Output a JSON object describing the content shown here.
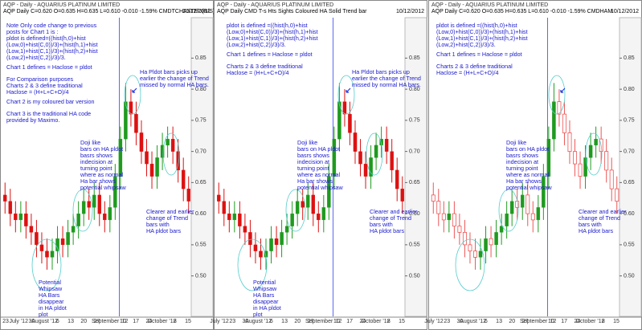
{
  "chart_data": [
    {
      "type": "candlestick",
      "title": "AQP - Daily - AQUARIUS PLATINUM LIMITED",
      "subtitle": "AQP  Daily  C=0.620  O=0.635  H=0.635  L=0.610  -0.010  -1.59%  CMDTCHASTED(B/S)",
      "date": "10/12/2012",
      "up_color": "#1f9a1f",
      "down_color": "#dd1111",
      "down_style": "solid",
      "ylim": [
        0.435,
        0.915
      ],
      "yticks": [
        {
          "value": 0.5,
          "label": "0.50"
        },
        {
          "value": 0.55,
          "label": "0.55"
        },
        {
          "value": 0.6,
          "label": "0.60"
        },
        {
          "value": 0.65,
          "label": "0.65"
        },
        {
          "value": 0.7,
          "label": "0.70"
        },
        {
          "value": 0.75,
          "label": "0.75"
        },
        {
          "value": 0.8,
          "label": "0.80"
        },
        {
          "value": 0.85,
          "label": "0.85"
        }
      ],
      "open": [
        0.63,
        0.62,
        0.6,
        0.59,
        0.6,
        0.58,
        0.57,
        0.55,
        0.54,
        0.53,
        0.54,
        0.56,
        0.55,
        0.57,
        0.58,
        0.6,
        0.62,
        0.61,
        0.63,
        0.6,
        0.59,
        0.61,
        0.66,
        0.72,
        0.78,
        0.76,
        0.73,
        0.7,
        0.68,
        0.66,
        0.69,
        0.71,
        0.72,
        0.7,
        0.67,
        0.64
      ],
      "high": [
        0.65,
        0.64,
        0.62,
        0.62,
        0.62,
        0.6,
        0.59,
        0.57,
        0.56,
        0.56,
        0.58,
        0.58,
        0.59,
        0.6,
        0.62,
        0.64,
        0.64,
        0.65,
        0.65,
        0.62,
        0.63,
        0.68,
        0.74,
        0.81,
        0.8,
        0.78,
        0.75,
        0.72,
        0.7,
        0.71,
        0.73,
        0.74,
        0.74,
        0.72,
        0.69,
        0.66
      ],
      "low": [
        0.6,
        0.58,
        0.57,
        0.57,
        0.56,
        0.55,
        0.53,
        0.52,
        0.51,
        0.51,
        0.52,
        0.53,
        0.53,
        0.55,
        0.56,
        0.58,
        0.59,
        0.59,
        0.58,
        0.57,
        0.57,
        0.59,
        0.64,
        0.7,
        0.74,
        0.71,
        0.68,
        0.66,
        0.64,
        0.64,
        0.67,
        0.69,
        0.68,
        0.65,
        0.62,
        0.6
      ],
      "close": [
        0.62,
        0.6,
        0.59,
        0.6,
        0.58,
        0.57,
        0.55,
        0.54,
        0.53,
        0.54,
        0.56,
        0.55,
        0.57,
        0.58,
        0.6,
        0.62,
        0.61,
        0.63,
        0.6,
        0.59,
        0.61,
        0.66,
        0.72,
        0.78,
        0.76,
        0.73,
        0.7,
        0.68,
        0.66,
        0.69,
        0.71,
        0.72,
        0.7,
        0.67,
        0.64,
        0.62
      ],
      "xlabels": [
        "23",
        "July '12",
        "30",
        "August '12",
        "6",
        "13",
        "20",
        "27",
        "September '12",
        "10",
        "17",
        "24",
        "October '12",
        "8",
        "15"
      ],
      "annotations": [
        {
          "lines": [
            "Note Only code change to previous",
            "posts for Chart 1 is :",
            "pldot is defined=((hist(h,0)+hist",
            "(Low,0)+hist(C,0))/3)+(hist(h,1)+hist",
            "(Low,1)+hist(C,1))/3)+(hist(h,2)+hist",
            "(Low,2)+hist(C,2))/3)/3."
          ]
        },
        {
          "lines": [
            "Chart 1 defines = Haclose = pldot"
          ]
        },
        {
          "lines": [
            "For Comparison purposes",
            "Charts 2 & 3 define traditional",
            "Haclose = (H+L+C+O)/4"
          ]
        },
        {
          "lines": [
            "Chart 2 is my coloured bar version"
          ]
        },
        {
          "lines": [
            "Chart 3 is the traditional HA code",
            "provided by Maximo."
          ]
        },
        {
          "lines": [
            "Ha Pldot bars picks up",
            "earlier the change of Trend",
            "missed  by normal HA bars."
          ]
        },
        {
          "lines": [
            "Doji like",
            "bars on HA pldot",
            "basrs shows",
            "indecision at",
            "turning point",
            "where as normal",
            "Ha bar  shows",
            "potential whipsaw"
          ]
        },
        {
          "lines": [
            "Potential",
            "Whipsaw",
            "HA Bars",
            "disappear",
            "in HA pldot",
            "plot"
          ]
        },
        {
          "lines": [
            "Clearer and earlier",
            "change of Trend",
            "bars with",
            "HA pldot bars"
          ]
        }
      ]
    },
    {
      "type": "candlestick",
      "title": "AQP - Daily - AQUARIUS PLATINUM LIMITED",
      "subtitle": "AQP  Daily  CMD T-s Hts Sights Coloured HA Solid Trend bar",
      "date": "10/12/2012",
      "up_color": "#1f9a1f",
      "down_color": "#dd1111",
      "down_style": "solid",
      "ylim": [
        0.435,
        0.915
      ],
      "yticks": [
        {
          "value": 0.5,
          "label": "0.50"
        },
        {
          "value": 0.55,
          "label": "0.55"
        },
        {
          "value": 0.6,
          "label": "0.60"
        },
        {
          "value": 0.65,
          "label": "0.65"
        },
        {
          "value": 0.7,
          "label": "0.70"
        },
        {
          "value": 0.75,
          "label": "0.75"
        },
        {
          "value": 0.8,
          "label": "0.80"
        },
        {
          "value": 0.85,
          "label": "0.85"
        }
      ],
      "open": [
        0.63,
        0.62,
        0.6,
        0.59,
        0.6,
        0.58,
        0.57,
        0.55,
        0.54,
        0.53,
        0.54,
        0.56,
        0.55,
        0.57,
        0.58,
        0.6,
        0.62,
        0.61,
        0.63,
        0.6,
        0.59,
        0.61,
        0.66,
        0.72,
        0.78,
        0.76,
        0.73,
        0.7,
        0.68,
        0.66,
        0.69,
        0.71,
        0.72,
        0.7,
        0.67,
        0.64
      ],
      "high": [
        0.65,
        0.64,
        0.62,
        0.62,
        0.62,
        0.6,
        0.59,
        0.57,
        0.56,
        0.56,
        0.58,
        0.58,
        0.59,
        0.6,
        0.62,
        0.64,
        0.64,
        0.65,
        0.65,
        0.62,
        0.63,
        0.68,
        0.74,
        0.81,
        0.8,
        0.78,
        0.75,
        0.72,
        0.7,
        0.71,
        0.73,
        0.74,
        0.74,
        0.72,
        0.69,
        0.66
      ],
      "low": [
        0.6,
        0.58,
        0.57,
        0.57,
        0.56,
        0.55,
        0.53,
        0.52,
        0.51,
        0.51,
        0.52,
        0.53,
        0.53,
        0.55,
        0.56,
        0.58,
        0.59,
        0.59,
        0.58,
        0.57,
        0.57,
        0.59,
        0.64,
        0.7,
        0.74,
        0.71,
        0.68,
        0.66,
        0.64,
        0.64,
        0.67,
        0.69,
        0.68,
        0.65,
        0.62,
        0.6
      ],
      "close": [
        0.62,
        0.6,
        0.59,
        0.6,
        0.58,
        0.57,
        0.55,
        0.54,
        0.53,
        0.54,
        0.56,
        0.55,
        0.57,
        0.58,
        0.6,
        0.62,
        0.61,
        0.63,
        0.6,
        0.59,
        0.61,
        0.66,
        0.72,
        0.78,
        0.76,
        0.73,
        0.7,
        0.68,
        0.66,
        0.69,
        0.71,
        0.72,
        0.7,
        0.67,
        0.64,
        0.62
      ],
      "xlabels": [
        "July '12",
        "23",
        "30",
        "August '12",
        "6",
        "13",
        "20",
        "27",
        "September '12",
        "10",
        "17",
        "24",
        "October '12",
        "8",
        "15"
      ],
      "annotations": [
        {
          "lines": [
            "pldot is defined =((hist(h,0)+hist",
            "(Low,0)+hist(C,0))/3)+(hist(h,1)+hist",
            "(Low,1)+hist(C,1))/3)+(hist(h,2)+hist",
            "(Low,2)+hist(C,2))/3)/3."
          ]
        },
        {
          "lines": [
            "Chart 1 defines = Haclose = pldot"
          ]
        },
        {
          "lines": [
            "Charts 2 & 3 define traditional",
            "Haclose = (H+L+C+O)/4"
          ]
        },
        {
          "lines": [
            "Ha Pldot bars picks up",
            "earlier the change of Trend",
            "missed  by normal HA bars."
          ]
        },
        {
          "lines": [
            "Doji like",
            "bars on HA pldot",
            "basrs shows",
            "indecision at",
            "turning point",
            "where as normal",
            "Ha bar  shows",
            "potential whipsaw"
          ]
        },
        {
          "lines": [
            "Potential",
            "Whipsaw",
            "HA Bars",
            "disappear",
            "in HA pldot",
            "plot"
          ]
        },
        {
          "lines": [
            "Clearer and earlier",
            "change of Trend",
            "bars with",
            "HA pldot bars"
          ]
        }
      ]
    },
    {
      "type": "candlestick",
      "title": "AQP - Daily - AQUARIUS PLATINUM LIMITED",
      "subtitle": "AQP  Daily  C=0.620  O=0.635  H=0.635  L=0.610  -0.010  -1.59%  CMDHAM",
      "date": "10/12/2012",
      "up_color": "#1f9a1f",
      "down_color": "#ee5555",
      "down_style": "hollow",
      "ylim": [
        0.435,
        0.915
      ],
      "yticks": [
        {
          "value": 0.5,
          "label": "0.50"
        },
        {
          "value": 0.55,
          "label": "0.55"
        },
        {
          "value": 0.6,
          "label": "0.60"
        },
        {
          "value": 0.65,
          "label": "0.65"
        },
        {
          "value": 0.7,
          "label": "0.70"
        },
        {
          "value": 0.75,
          "label": "0.75"
        },
        {
          "value": 0.8,
          "label": "0.80"
        },
        {
          "value": 0.85,
          "label": "0.85"
        }
      ],
      "open": [
        0.63,
        0.62,
        0.6,
        0.59,
        0.6,
        0.58,
        0.57,
        0.55,
        0.54,
        0.53,
        0.54,
        0.56,
        0.55,
        0.57,
        0.58,
        0.6,
        0.62,
        0.61,
        0.63,
        0.6,
        0.59,
        0.61,
        0.66,
        0.72,
        0.78,
        0.76,
        0.73,
        0.7,
        0.68,
        0.66,
        0.69,
        0.71,
        0.72,
        0.7,
        0.67,
        0.64
      ],
      "high": [
        0.65,
        0.64,
        0.62,
        0.62,
        0.62,
        0.6,
        0.59,
        0.57,
        0.56,
        0.56,
        0.58,
        0.58,
        0.59,
        0.6,
        0.62,
        0.64,
        0.64,
        0.65,
        0.65,
        0.62,
        0.63,
        0.68,
        0.74,
        0.81,
        0.8,
        0.78,
        0.75,
        0.72,
        0.7,
        0.71,
        0.73,
        0.74,
        0.74,
        0.72,
        0.69,
        0.66
      ],
      "low": [
        0.6,
        0.58,
        0.57,
        0.57,
        0.56,
        0.55,
        0.53,
        0.52,
        0.51,
        0.51,
        0.52,
        0.53,
        0.53,
        0.55,
        0.56,
        0.58,
        0.59,
        0.59,
        0.58,
        0.57,
        0.57,
        0.59,
        0.64,
        0.7,
        0.74,
        0.71,
        0.68,
        0.66,
        0.64,
        0.64,
        0.67,
        0.69,
        0.68,
        0.65,
        0.62,
        0.6
      ],
      "close": [
        0.62,
        0.6,
        0.59,
        0.6,
        0.58,
        0.57,
        0.55,
        0.54,
        0.53,
        0.54,
        0.56,
        0.55,
        0.57,
        0.58,
        0.6,
        0.62,
        0.61,
        0.63,
        0.6,
        0.59,
        0.61,
        0.66,
        0.72,
        0.78,
        0.76,
        0.73,
        0.7,
        0.68,
        0.66,
        0.69,
        0.71,
        0.72,
        0.7,
        0.67,
        0.64,
        0.62
      ],
      "xlabels": [
        "July '12",
        "23",
        "30",
        "August '12",
        "6",
        "13",
        "20",
        "27",
        "September '12",
        "10",
        "17",
        "24",
        "October '12",
        "8",
        "15"
      ],
      "annotations": [
        {
          "lines": [
            "pldot is defined =((hist(h,0)+hist",
            "(Low,0)+hist(C,0))/3)+(hist(h,1)+hist",
            "(Low,1)+hist(C,1))/3)+(hist(h,2)+hist",
            "(Low,2)+hist(C,2))/3)/3."
          ]
        },
        {
          "lines": [
            "Chart 1 defines = Haclose = pldot"
          ]
        },
        {
          "lines": [
            "Charts 2 & 3 define traditional",
            "Haclose = (H+L+C+O)/4"
          ]
        },
        {
          "lines": [
            "Doji like",
            "bars on HA pldot",
            "basrs shows",
            "indecision at",
            "turning point",
            "where as normal",
            "Ha bar  shows",
            "potential whipsaw"
          ]
        },
        {
          "lines": [
            "Clearer and earlier",
            "change of Trend",
            "bars with",
            "HA pldot bars"
          ]
        }
      ]
    }
  ]
}
